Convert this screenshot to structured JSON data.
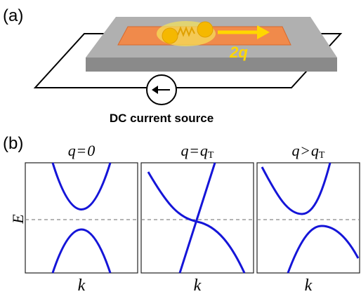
{
  "panel_a": {
    "label": "(a)",
    "arrow_label": "2q",
    "source_label": "DC current source"
  },
  "panel_b": {
    "label": "(b)",
    "y_label": "E",
    "panels": [
      {
        "title": [
          "q",
          "=",
          "0"
        ],
        "x_label": "k"
      },
      {
        "title": [
          "q",
          "=",
          "q",
          "T"
        ],
        "x_label": "k"
      },
      {
        "title": [
          "q",
          ">",
          "q",
          "T"
        ],
        "x_label": "k"
      }
    ]
  }
}
